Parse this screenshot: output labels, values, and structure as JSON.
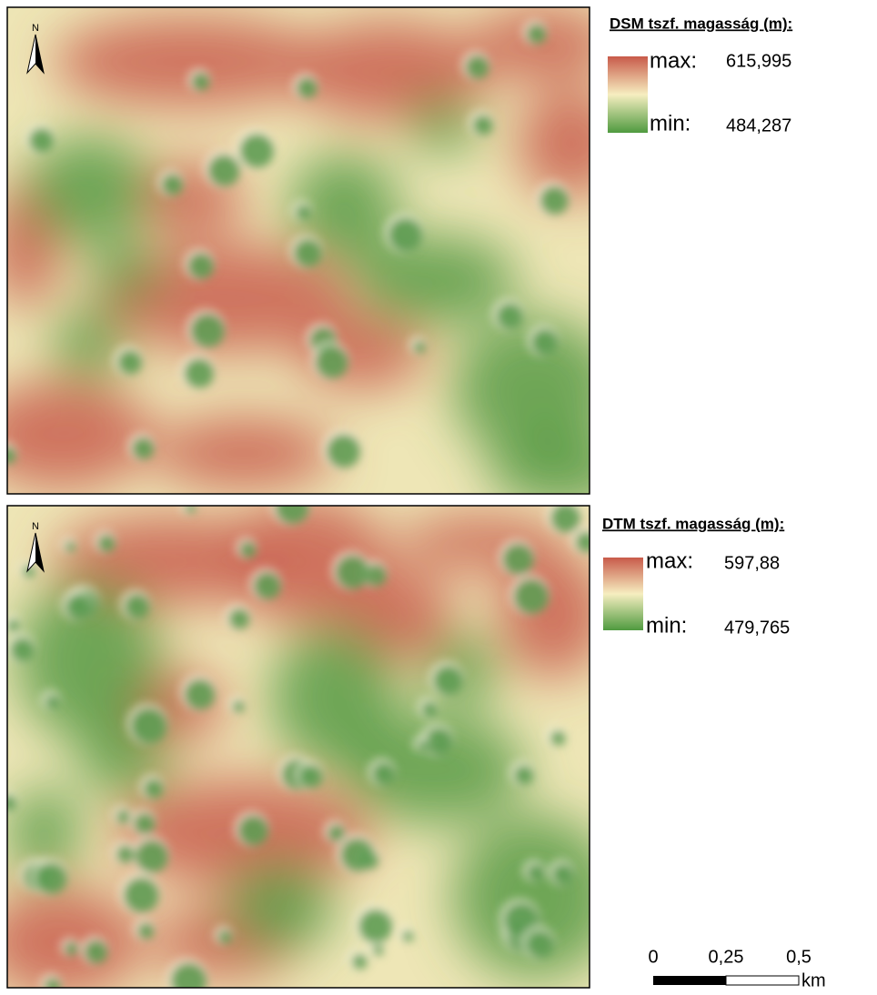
{
  "maps": [
    {
      "north": "N",
      "legend": {
        "title": "DSM tszf. magasság (m):",
        "max_label": "max:",
        "max_value": "615,995",
        "min_label": "min:",
        "min_value": "484,287"
      }
    },
    {
      "north": "N",
      "legend": {
        "title": "DTM tszf. magasság (m):",
        "max_label": "max:",
        "max_value": "597,88",
        "min_label": "min:",
        "min_value": "479,765"
      }
    }
  ],
  "scale_bar": {
    "ticks": [
      "0",
      "0,25",
      "0,5"
    ],
    "unit": "km"
  }
}
